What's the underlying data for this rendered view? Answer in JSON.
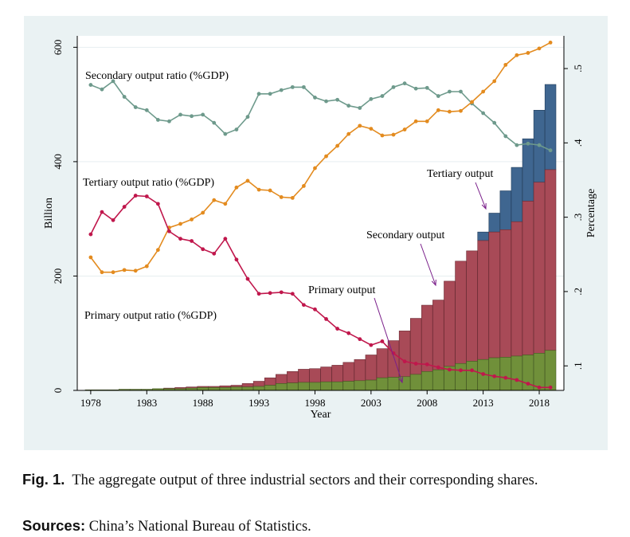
{
  "chart_data": {
    "type": "bar+line",
    "title": "",
    "xlabel": "Year",
    "ylabel": "Billion",
    "y2label": "Percentage",
    "ylim": [
      0,
      620
    ],
    "y2lim": [
      0.067,
      0.544
    ],
    "x_ticks": [
      1978,
      1983,
      1988,
      1993,
      1998,
      2003,
      2008,
      2013,
      2018
    ],
    "y_ticks": [
      0,
      200,
      400,
      600
    ],
    "y2_ticks": [
      {
        "value": 0.1,
        "label": ".1"
      },
      {
        "value": 0.2,
        "label": ".2"
      },
      {
        "value": 0.3,
        "label": ".3"
      },
      {
        "value": 0.4,
        "label": ".4"
      },
      {
        "value": 0.5,
        "label": ".5"
      }
    ],
    "years": [
      1978,
      1979,
      1980,
      1981,
      1982,
      1983,
      1984,
      1985,
      1986,
      1987,
      1988,
      1989,
      1990,
      1991,
      1992,
      1993,
      1994,
      1995,
      1996,
      1997,
      1998,
      1999,
      2000,
      2001,
      2002,
      2003,
      2004,
      2005,
      2006,
      2007,
      2008,
      2009,
      2010,
      2011,
      2012,
      2013,
      2014,
      2015,
      2016,
      2017,
      2018,
      2019
    ],
    "stacked_bars": {
      "primary_output": [
        1,
        1,
        1,
        2,
        2,
        2,
        3,
        3,
        3,
        4,
        5,
        5,
        5,
        6,
        6,
        7,
        9,
        12,
        13,
        14,
        14,
        15,
        15,
        16,
        17,
        18,
        22,
        23,
        24,
        28,
        33,
        36,
        42,
        47,
        51,
        54,
        57,
        58,
        60,
        62,
        65,
        70
      ],
      "secondary_output_cumulative": [
        1,
        1,
        1,
        2,
        2,
        2,
        3,
        4,
        5,
        6,
        7,
        7,
        8,
        9,
        12,
        16,
        22,
        28,
        33,
        37,
        38,
        41,
        44,
        49,
        54,
        62,
        73,
        87,
        104,
        126,
        149,
        158,
        191,
        226,
        244,
        262,
        277,
        281,
        295,
        331,
        364,
        386
      ],
      "tertiary_output_cumulative": [
        1,
        1,
        1,
        2,
        2,
        2,
        3,
        4,
        5,
        6,
        7,
        7,
        8,
        9,
        12,
        16,
        22,
        28,
        33,
        37,
        38,
        41,
        44,
        49,
        54,
        62,
        73,
        87,
        104,
        126,
        149,
        158,
        191,
        226,
        244,
        277,
        310,
        349,
        390,
        440,
        490,
        535
      ]
    },
    "series": [
      {
        "name": "Secondary output ratio (%GDP)",
        "color": "#6e9a8c",
        "values": [
          0.478,
          0.472,
          0.483,
          0.462,
          0.448,
          0.444,
          0.431,
          0.429,
          0.438,
          0.436,
          0.438,
          0.427,
          0.412,
          0.418,
          0.435,
          0.466,
          0.466,
          0.471,
          0.475,
          0.475,
          0.461,
          0.456,
          0.458,
          0.45,
          0.447,
          0.459,
          0.463,
          0.475,
          0.48,
          0.473,
          0.474,
          0.463,
          0.469,
          0.469,
          0.453,
          0.44,
          0.427,
          0.409,
          0.397,
          0.399,
          0.397,
          0.39
        ]
      },
      {
        "name": "Tertiary output ratio (%GDP)",
        "color": "#e38b1f",
        "values": [
          0.246,
          0.226,
          0.226,
          0.229,
          0.228,
          0.234,
          0.256,
          0.286,
          0.291,
          0.297,
          0.306,
          0.323,
          0.318,
          0.34,
          0.349,
          0.337,
          0.336,
          0.327,
          0.326,
          0.342,
          0.366,
          0.382,
          0.396,
          0.412,
          0.423,
          0.419,
          0.41,
          0.411,
          0.418,
          0.429,
          0.429,
          0.444,
          0.442,
          0.443,
          0.455,
          0.469,
          0.483,
          0.505,
          0.518,
          0.521,
          0.527,
          0.535
        ]
      },
      {
        "name": "Primary output ratio (%GDP)",
        "color": "#c0174c",
        "values": [
          0.277,
          0.307,
          0.296,
          0.314,
          0.329,
          0.328,
          0.318,
          0.281,
          0.271,
          0.268,
          0.257,
          0.251,
          0.271,
          0.243,
          0.217,
          0.197,
          0.198,
          0.199,
          0.197,
          0.182,
          0.176,
          0.163,
          0.15,
          0.144,
          0.136,
          0.128,
          0.133,
          0.117,
          0.106,
          0.103,
          0.102,
          0.098,
          0.095,
          0.094,
          0.094,
          0.089,
          0.086,
          0.084,
          0.081,
          0.076,
          0.071,
          0.071
        ]
      }
    ],
    "bar_colors": {
      "primary": "#70903a",
      "secondary": "#a84a57",
      "tertiary": "#3f6690"
    },
    "labels": {
      "secondary_ratio": "Secondary output ratio (%GDP)",
      "tertiary_ratio": "Tertiary output ratio (%GDP)",
      "primary_ratio": "Primary output ratio (%GDP)",
      "tertiary_output": "Tertiary output",
      "secondary_output": "Secondary output",
      "primary_output": "Primary output"
    },
    "grid": true,
    "legend": "none (inline annotations)"
  },
  "caption": {
    "fig_label": "Fig. 1.",
    "text": "The aggregate output of three industrial sectors and their corresponding shares.",
    "sources_label": "Sources:",
    "sources_text": "China’s National Bureau of Statistics."
  }
}
